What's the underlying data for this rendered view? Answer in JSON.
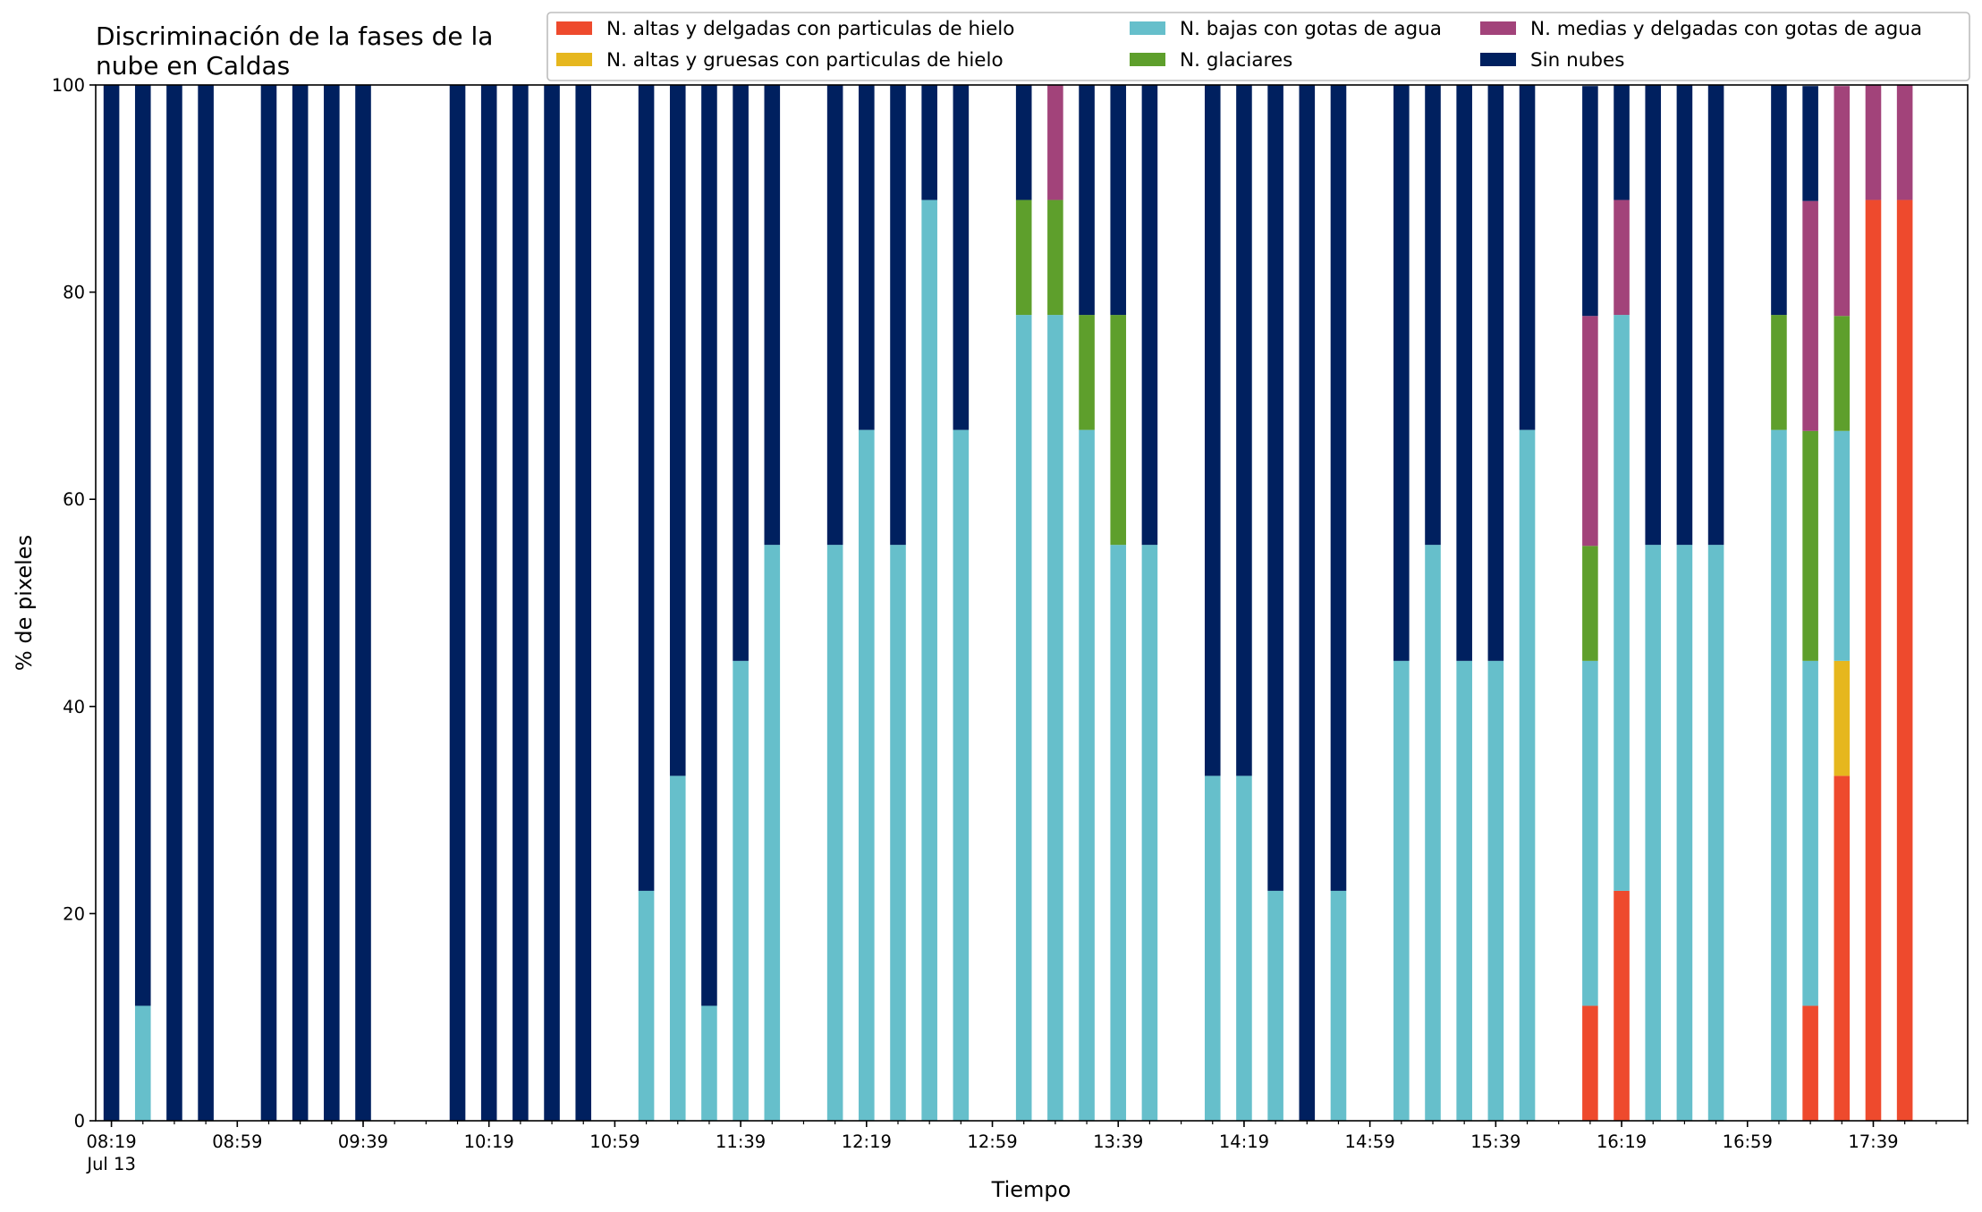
{
  "chart_data": {
    "type": "bar",
    "stacked": true,
    "title": "Discriminación de la fases de la nube en Caldas",
    "title_lines": [
      "Discriminación de la fases de la",
      "nube en Caldas"
    ],
    "xlabel": "Tiempo",
    "ylabel": "% de pixeles",
    "ylim": [
      0,
      100
    ],
    "x_range": [
      "08:14",
      "18:09"
    ],
    "yticks": [
      0,
      20,
      40,
      60,
      80,
      100
    ],
    "xticks": [
      {
        "time": "08:19",
        "label": "08:19",
        "sublabel": "Jul 13"
      },
      {
        "time": "08:59",
        "label": "08:59"
      },
      {
        "time": "09:39",
        "label": "09:39"
      },
      {
        "time": "10:19",
        "label": "10:19"
      },
      {
        "time": "10:59",
        "label": "10:59"
      },
      {
        "time": "11:39",
        "label": "11:39"
      },
      {
        "time": "12:19",
        "label": "12:19"
      },
      {
        "time": "12:59",
        "label": "12:59"
      },
      {
        "time": "13:39",
        "label": "13:39"
      },
      {
        "time": "14:19",
        "label": "14:19"
      },
      {
        "time": "14:59",
        "label": "14:59"
      },
      {
        "time": "15:39",
        "label": "15:39"
      },
      {
        "time": "16:19",
        "label": "16:19"
      },
      {
        "time": "16:59",
        "label": "16:59"
      },
      {
        "time": "17:39",
        "label": "17:39"
      }
    ],
    "minor_tick_interval_minutes": 10,
    "grid": false,
    "legend_position": "top-right",
    "legend_columns": 3,
    "categories": [
      "08:19",
      "08:29",
      "08:39",
      "08:49",
      "09:09",
      "09:19",
      "09:29",
      "09:39",
      "10:09",
      "10:19",
      "10:29",
      "10:39",
      "10:49",
      "11:09",
      "11:19",
      "11:29",
      "11:39",
      "11:49",
      "12:09",
      "12:19",
      "12:29",
      "12:39",
      "12:49",
      "13:09",
      "13:19",
      "13:29",
      "13:39",
      "13:49",
      "14:09",
      "14:19",
      "14:29",
      "14:39",
      "14:49",
      "15:09",
      "15:19",
      "15:29",
      "15:39",
      "15:49",
      "16:09",
      "16:19",
      "16:29",
      "16:39",
      "16:49",
      "17:09",
      "17:19",
      "17:29",
      "17:39",
      "17:49"
    ],
    "series": [
      {
        "name": "N. altas y delgadas con particulas de hielo",
        "color": "#ee4a2d",
        "values": [
          0,
          0,
          0,
          0,
          0,
          0,
          0,
          0,
          0,
          0,
          0,
          0,
          0,
          0,
          0,
          0,
          0,
          0,
          0,
          0,
          0,
          0,
          0,
          0,
          0,
          0,
          0,
          0,
          0,
          0,
          0,
          0,
          0,
          0,
          0,
          0,
          0,
          0,
          11.1,
          22.2,
          0,
          0,
          0,
          0,
          11.1,
          33.3,
          88.9,
          88.9
        ]
      },
      {
        "name": "N. altas y gruesas con particulas de hielo",
        "color": "#e6b71e",
        "values": [
          0,
          0,
          0,
          0,
          0,
          0,
          0,
          0,
          0,
          0,
          0,
          0,
          0,
          0,
          0,
          0,
          0,
          0,
          0,
          0,
          0,
          0,
          0,
          0,
          0,
          0,
          0,
          0,
          0,
          0,
          0,
          0,
          0,
          0,
          0,
          0,
          0,
          0,
          0,
          0,
          0,
          0,
          0,
          0,
          0,
          11.1,
          0,
          0
        ]
      },
      {
        "name": "N. bajas con gotas de agua",
        "color": "#66bfcb",
        "values": [
          0,
          11.1,
          0,
          0,
          0,
          0,
          0,
          0,
          0,
          0,
          0,
          0,
          0,
          22.2,
          33.3,
          11.1,
          44.4,
          55.6,
          55.6,
          66.7,
          55.6,
          88.9,
          66.7,
          77.8,
          77.8,
          66.7,
          55.6,
          55.6,
          33.3,
          33.3,
          22.2,
          0,
          22.2,
          44.4,
          55.6,
          44.4,
          44.4,
          66.7,
          33.3,
          55.6,
          55.6,
          55.6,
          55.6,
          66.7,
          33.3,
          22.2,
          0,
          0
        ]
      },
      {
        "name": "N. glaciares",
        "color": "#5e9f2c",
        "values": [
          0,
          0,
          0,
          0,
          0,
          0,
          0,
          0,
          0,
          0,
          0,
          0,
          0,
          0,
          0,
          0,
          0,
          0,
          0,
          0,
          0,
          0,
          0,
          11.1,
          11.1,
          11.1,
          22.2,
          0,
          0,
          0,
          0,
          0,
          0,
          0,
          0,
          0,
          0,
          0,
          11.1,
          0,
          0,
          0,
          0,
          11.1,
          22.2,
          11.1,
          0,
          0
        ]
      },
      {
        "name": "N. medias y delgadas con gotas de agua",
        "color": "#a2437a",
        "values": [
          0,
          0,
          0,
          0,
          0,
          0,
          0,
          0,
          0,
          0,
          0,
          0,
          0,
          0,
          0,
          0,
          0,
          0,
          0,
          0,
          0,
          0,
          0,
          0,
          11.1,
          0,
          0,
          0,
          0,
          0,
          0,
          0,
          0,
          0,
          0,
          0,
          0,
          0,
          22.2,
          11.1,
          0,
          0,
          0,
          0,
          22.2,
          22.2,
          11.1,
          11.1
        ]
      },
      {
        "name": "Sin nubes",
        "color": "#00205f",
        "values": [
          100,
          88.9,
          100,
          100,
          100,
          100,
          100,
          100,
          100,
          100,
          100,
          100,
          100,
          77.8,
          66.7,
          88.9,
          55.6,
          44.4,
          44.4,
          33.3,
          44.4,
          11.1,
          33.3,
          11.1,
          0,
          22.2,
          22.2,
          44.4,
          66.7,
          66.7,
          77.8,
          100,
          77.8,
          55.6,
          44.4,
          55.6,
          55.6,
          33.3,
          22.2,
          11.1,
          44.4,
          44.4,
          44.4,
          22.2,
          11.1,
          0,
          0,
          0
        ]
      }
    ]
  }
}
